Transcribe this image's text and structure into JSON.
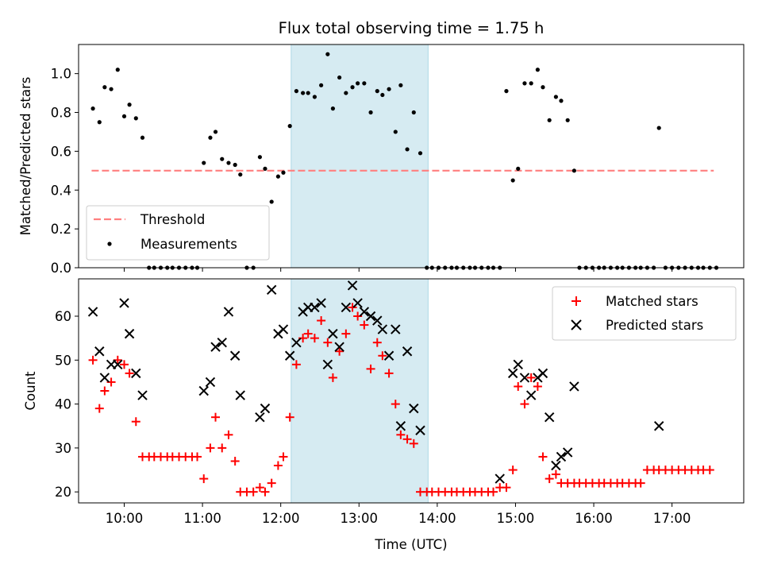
{
  "colors": {
    "threshold": "#ff7f7f",
    "measurement": "#000000",
    "matched": "#ff0000",
    "predicted": "#000000",
    "shade": "#add8e6"
  },
  "chart_data": [
    {
      "type": "scatter",
      "title": "Flux total observing time = 1.75 h",
      "xlabel": "",
      "ylabel": "Matched/Predicted stars",
      "ylim": [
        0,
        1.15
      ],
      "yticks": [
        "0.0",
        "0.2",
        "0.4",
        "0.6",
        "0.8",
        "1.0"
      ],
      "xlim": [
        "09:25",
        "17:55"
      ],
      "shaded_region": [
        "12:08",
        "13:53"
      ],
      "legend_position": "lower-left",
      "threshold": {
        "name": "Threshold",
        "y": 0.5,
        "x": [
          "09:35",
          "17:32"
        ]
      },
      "series": [
        {
          "name": "Measurements",
          "marker": "dot",
          "points": [
            [
              "09:36",
              0.82
            ],
            [
              "09:41",
              0.75
            ],
            [
              "09:45",
              0.93
            ],
            [
              "09:50",
              0.92
            ],
            [
              "09:55",
              1.02
            ],
            [
              "10:00",
              0.78
            ],
            [
              "10:04",
              0.84
            ],
            [
              "10:09",
              0.77
            ],
            [
              "10:14",
              0.67
            ],
            [
              "10:19",
              0.0
            ],
            [
              "10:23",
              0.0
            ],
            [
              "10:28",
              0.0
            ],
            [
              "10:33",
              0.0
            ],
            [
              "10:37",
              0.0
            ],
            [
              "10:42",
              0.0
            ],
            [
              "10:47",
              0.0
            ],
            [
              "10:52",
              0.0
            ],
            [
              "10:56",
              0.0
            ],
            [
              "11:01",
              0.54
            ],
            [
              "11:06",
              0.67
            ],
            [
              "11:10",
              0.7
            ],
            [
              "11:15",
              0.56
            ],
            [
              "11:20",
              0.54
            ],
            [
              "11:25",
              0.53
            ],
            [
              "11:29",
              0.48
            ],
            [
              "11:34",
              0.0
            ],
            [
              "11:39",
              0.0
            ],
            [
              "11:44",
              0.57
            ],
            [
              "11:48",
              0.51
            ],
            [
              "11:53",
              0.34
            ],
            [
              "11:58",
              0.47
            ],
            [
              "12:02",
              0.49
            ],
            [
              "12:07",
              0.73
            ],
            [
              "12:12",
              0.91
            ],
            [
              "12:17",
              0.9
            ],
            [
              "12:21",
              0.9
            ],
            [
              "12:26",
              0.88
            ],
            [
              "12:31",
              0.94
            ],
            [
              "12:36",
              1.1
            ],
            [
              "12:40",
              0.82
            ],
            [
              "12:45",
              0.98
            ],
            [
              "12:50",
              0.9
            ],
            [
              "12:55",
              0.93
            ],
            [
              "12:59",
              0.95
            ],
            [
              "13:04",
              0.95
            ],
            [
              "13:09",
              0.8
            ],
            [
              "13:14",
              0.91
            ],
            [
              "13:18",
              0.89
            ],
            [
              "13:23",
              0.92
            ],
            [
              "13:28",
              0.7
            ],
            [
              "13:32",
              0.94
            ],
            [
              "13:37",
              0.61
            ],
            [
              "13:42",
              0.8
            ],
            [
              "13:47",
              0.59
            ],
            [
              "13:52",
              0.0
            ],
            [
              "13:56",
              0.0
            ],
            [
              "14:01",
              0.0
            ],
            [
              "14:06",
              0.0
            ],
            [
              "14:11",
              0.0
            ],
            [
              "14:15",
              0.0
            ],
            [
              "14:20",
              0.0
            ],
            [
              "14:25",
              0.0
            ],
            [
              "14:29",
              0.0
            ],
            [
              "14:34",
              0.0
            ],
            [
              "14:39",
              0.0
            ],
            [
              "14:43",
              0.0
            ],
            [
              "14:48",
              0.0
            ],
            [
              "14:53",
              0.91
            ],
            [
              "14:58",
              0.45
            ],
            [
              "15:02",
              0.51
            ],
            [
              "15:07",
              0.95
            ],
            [
              "15:12",
              0.95
            ],
            [
              "15:17",
              1.02
            ],
            [
              "15:21",
              0.93
            ],
            [
              "15:26",
              0.76
            ],
            [
              "15:31",
              0.88
            ],
            [
              "15:35",
              0.86
            ],
            [
              "15:40",
              0.76
            ],
            [
              "15:45",
              0.5
            ],
            [
              "15:49",
              0.0
            ],
            [
              "15:54",
              0.0
            ],
            [
              "15:59",
              0.0
            ],
            [
              "16:04",
              0.0
            ],
            [
              "16:08",
              0.0
            ],
            [
              "16:13",
              0.0
            ],
            [
              "16:18",
              0.0
            ],
            [
              "16:22",
              0.0
            ],
            [
              "16:27",
              0.0
            ],
            [
              "16:32",
              0.0
            ],
            [
              "16:36",
              0.0
            ],
            [
              "16:41",
              0.0
            ],
            [
              "16:46",
              0.0
            ],
            [
              "16:50",
              0.72
            ],
            [
              "16:55",
              0.0
            ],
            [
              "17:00",
              0.0
            ],
            [
              "17:05",
              0.0
            ],
            [
              "17:10",
              0.0
            ],
            [
              "17:15",
              0.0
            ],
            [
              "17:20",
              0.0
            ],
            [
              "17:24",
              0.0
            ],
            [
              "17:29",
              0.0
            ],
            [
              "17:34",
              0.0
            ]
          ]
        }
      ]
    },
    {
      "type": "scatter",
      "title": "",
      "xlabel": "Time (UTC)",
      "ylabel": "Count",
      "ylim": [
        17.5,
        68.5
      ],
      "yticks": [
        "20",
        "30",
        "40",
        "50",
        "60"
      ],
      "xlim": [
        "09:25",
        "17:55"
      ],
      "xticks": [
        "10:00",
        "11:00",
        "12:00",
        "13:00",
        "14:00",
        "15:00",
        "16:00",
        "17:00"
      ],
      "shaded_region": [
        "12:08",
        "13:53"
      ],
      "legend_position": "upper-right",
      "series": [
        {
          "name": "Matched stars",
          "marker": "plus",
          "points": [
            [
              "09:36",
              50
            ],
            [
              "09:41",
              39
            ],
            [
              "09:45",
              43
            ],
            [
              "09:50",
              45
            ],
            [
              "09:55",
              50
            ],
            [
              "10:00",
              49
            ],
            [
              "10:04",
              47
            ],
            [
              "10:09",
              36
            ],
            [
              "10:14",
              28
            ],
            [
              "10:19",
              28
            ],
            [
              "10:23",
              28
            ],
            [
              "10:28",
              28
            ],
            [
              "10:33",
              28
            ],
            [
              "10:37",
              28
            ],
            [
              "10:42",
              28
            ],
            [
              "10:47",
              28
            ],
            [
              "10:52",
              28
            ],
            [
              "10:56",
              28
            ],
            [
              "11:01",
              23
            ],
            [
              "11:06",
              30
            ],
            [
              "11:10",
              37
            ],
            [
              "11:15",
              30
            ],
            [
              "11:20",
              33
            ],
            [
              "11:25",
              27
            ],
            [
              "11:29",
              20
            ],
            [
              "11:34",
              20
            ],
            [
              "11:39",
              20
            ],
            [
              "11:44",
              21
            ],
            [
              "11:48",
              20
            ],
            [
              "11:53",
              22
            ],
            [
              "11:58",
              26
            ],
            [
              "12:02",
              28
            ],
            [
              "12:07",
              37
            ],
            [
              "12:12",
              49
            ],
            [
              "12:17",
              55
            ],
            [
              "12:21",
              56
            ],
            [
              "12:26",
              55
            ],
            [
              "12:31",
              59
            ],
            [
              "12:36",
              54
            ],
            [
              "12:40",
              46
            ],
            [
              "12:45",
              52
            ],
            [
              "12:50",
              56
            ],
            [
              "12:55",
              62
            ],
            [
              "12:59",
              60
            ],
            [
              "13:04",
              58
            ],
            [
              "13:09",
              48
            ],
            [
              "13:14",
              54
            ],
            [
              "13:18",
              51
            ],
            [
              "13:23",
              47
            ],
            [
              "13:28",
              40
            ],
            [
              "13:32",
              33
            ],
            [
              "13:37",
              32
            ],
            [
              "13:42",
              31
            ],
            [
              "13:47",
              20
            ],
            [
              "13:52",
              20
            ],
            [
              "13:56",
              20
            ],
            [
              "14:01",
              20
            ],
            [
              "14:06",
              20
            ],
            [
              "14:11",
              20
            ],
            [
              "14:15",
              20
            ],
            [
              "14:20",
              20
            ],
            [
              "14:25",
              20
            ],
            [
              "14:29",
              20
            ],
            [
              "14:34",
              20
            ],
            [
              "14:39",
              20
            ],
            [
              "14:43",
              20
            ],
            [
              "14:48",
              21
            ],
            [
              "14:53",
              21
            ],
            [
              "14:58",
              25
            ],
            [
              "15:02",
              44
            ],
            [
              "15:07",
              40
            ],
            [
              "15:12",
              46
            ],
            [
              "15:17",
              44
            ],
            [
              "15:21",
              28
            ],
            [
              "15:26",
              23
            ],
            [
              "15:31",
              24
            ],
            [
              "15:35",
              22
            ],
            [
              "15:40",
              22
            ],
            [
              "15:45",
              22
            ],
            [
              "15:49",
              22
            ],
            [
              "15:54",
              22
            ],
            [
              "15:59",
              22
            ],
            [
              "16:04",
              22
            ],
            [
              "16:08",
              22
            ],
            [
              "16:13",
              22
            ],
            [
              "16:18",
              22
            ],
            [
              "16:22",
              22
            ],
            [
              "16:27",
              22
            ],
            [
              "16:32",
              22
            ],
            [
              "16:36",
              22
            ],
            [
              "16:41",
              25
            ],
            [
              "16:46",
              25
            ],
            [
              "16:50",
              25
            ],
            [
              "16:55",
              25
            ],
            [
              "17:00",
              25
            ],
            [
              "17:05",
              25
            ],
            [
              "17:10",
              25
            ],
            [
              "17:15",
              25
            ],
            [
              "17:20",
              25
            ],
            [
              "17:24",
              25
            ],
            [
              "17:29",
              25
            ]
          ]
        },
        {
          "name": "Predicted stars",
          "marker": "x",
          "points": [
            [
              "09:36",
              61
            ],
            [
              "09:41",
              52
            ],
            [
              "09:45",
              46
            ],
            [
              "09:50",
              49
            ],
            [
              "09:55",
              49
            ],
            [
              "10:00",
              63
            ],
            [
              "10:04",
              56
            ],
            [
              "10:09",
              47
            ],
            [
              "10:14",
              42
            ],
            [
              "11:01",
              43
            ],
            [
              "11:06",
              45
            ],
            [
              "11:10",
              53
            ],
            [
              "11:15",
              54
            ],
            [
              "11:20",
              61
            ],
            [
              "11:25",
              51
            ],
            [
              "11:29",
              42
            ],
            [
              "11:44",
              37
            ],
            [
              "11:48",
              39
            ],
            [
              "11:53",
              66
            ],
            [
              "11:58",
              56
            ],
            [
              "12:02",
              57
            ],
            [
              "12:07",
              51
            ],
            [
              "12:12",
              54
            ],
            [
              "12:17",
              61
            ],
            [
              "12:21",
              62
            ],
            [
              "12:26",
              62
            ],
            [
              "12:31",
              63
            ],
            [
              "12:36",
              49
            ],
            [
              "12:40",
              56
            ],
            [
              "12:45",
              53
            ],
            [
              "12:50",
              62
            ],
            [
              "12:55",
              67
            ],
            [
              "12:59",
              63
            ],
            [
              "13:04",
              61
            ],
            [
              "13:09",
              60
            ],
            [
              "13:14",
              59
            ],
            [
              "13:18",
              57
            ],
            [
              "13:23",
              51
            ],
            [
              "13:28",
              57
            ],
            [
              "13:32",
              35
            ],
            [
              "13:37",
              52
            ],
            [
              "13:42",
              39
            ],
            [
              "13:47",
              34
            ],
            [
              "14:48",
              23
            ],
            [
              "14:58",
              47
            ],
            [
              "15:02",
              49
            ],
            [
              "15:07",
              46
            ],
            [
              "15:12",
              42
            ],
            [
              "15:17",
              46
            ],
            [
              "15:21",
              47
            ],
            [
              "15:26",
              37
            ],
            [
              "15:31",
              26
            ],
            [
              "15:35",
              28
            ],
            [
              "15:40",
              29
            ],
            [
              "15:45",
              44
            ],
            [
              "16:50",
              35
            ]
          ]
        }
      ]
    }
  ]
}
